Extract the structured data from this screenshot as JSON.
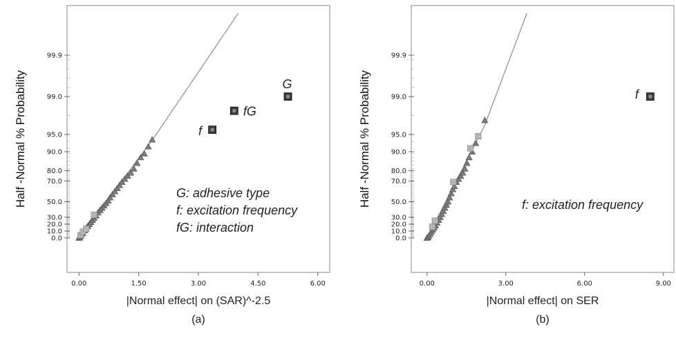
{
  "chart_data": [
    {
      "type": "scatter",
      "panel": "a",
      "caption": "(a)",
      "xlabel": "|Normal effect| on (SAR)^-2.5",
      "ylabel": "Half -Normal % Probability",
      "xlim": [
        -0.3,
        6.3
      ],
      "xticks": [
        "0.00",
        "1.50",
        "3.00",
        "4.50",
        "6.00"
      ],
      "xtick_values": [
        0,
        1.5,
        3,
        4.5,
        6
      ],
      "yticks": [
        "0.0",
        "10.0",
        "20.0",
        "30.0",
        "50.0",
        "70.0",
        "80.0",
        "90.0",
        "95.0",
        "99.0",
        "99.9"
      ],
      "ytick_values": [
        0,
        10,
        20,
        30,
        50,
        70,
        80,
        90,
        95,
        99,
        99.9
      ],
      "fit_line": {
        "points": [
          [
            0,
            0
          ],
          [
            1.85,
            93.5
          ],
          [
            4.0,
            99.96
          ]
        ]
      },
      "labeled_points": [
        {
          "label": "f",
          "x": 3.35,
          "y": 95.5
        },
        {
          "label": "fG",
          "x": 3.9,
          "y": 97.5
        },
        {
          "label": "G",
          "x": 5.25,
          "y": 99.0
        }
      ],
      "annotations": [
        "G: adhesive type",
        "f: excitation frequency",
        "fG: interaction"
      ],
      "error_effects": [
        {
          "x": 0.0,
          "y": 0
        },
        {
          "x": 0.02,
          "y": 1
        },
        {
          "x": 0.05,
          "y": 3
        },
        {
          "x": 0.08,
          "y": 6
        },
        {
          "x": 0.1,
          "y": 8
        },
        {
          "x": 0.14,
          "y": 11
        },
        {
          "x": 0.18,
          "y": 14
        },
        {
          "x": 0.22,
          "y": 17
        },
        {
          "x": 0.26,
          "y": 20
        },
        {
          "x": 0.3,
          "y": 23
        },
        {
          "x": 0.34,
          "y": 26
        },
        {
          "x": 0.38,
          "y": 29
        },
        {
          "x": 0.43,
          "y": 32
        },
        {
          "x": 0.48,
          "y": 36
        },
        {
          "x": 0.53,
          "y": 39
        },
        {
          "x": 0.58,
          "y": 42
        },
        {
          "x": 0.63,
          "y": 45
        },
        {
          "x": 0.68,
          "y": 48
        },
        {
          "x": 0.73,
          "y": 51
        },
        {
          "x": 0.78,
          "y": 54
        },
        {
          "x": 0.84,
          "y": 57
        },
        {
          "x": 0.9,
          "y": 60
        },
        {
          "x": 0.96,
          "y": 63
        },
        {
          "x": 1.02,
          "y": 66
        },
        {
          "x": 1.08,
          "y": 69
        },
        {
          "x": 1.15,
          "y": 72
        },
        {
          "x": 1.22,
          "y": 75
        },
        {
          "x": 1.3,
          "y": 78
        },
        {
          "x": 1.38,
          "y": 81
        },
        {
          "x": 1.46,
          "y": 84
        },
        {
          "x": 1.55,
          "y": 87
        },
        {
          "x": 1.64,
          "y": 89
        },
        {
          "x": 1.74,
          "y": 91.5
        },
        {
          "x": 1.84,
          "y": 93.5
        }
      ],
      "square_effects": [
        {
          "x": 0.04,
          "y": 4
        },
        {
          "x": 0.1,
          "y": 9
        },
        {
          "x": 0.18,
          "y": 13
        },
        {
          "x": 0.38,
          "y": 33
        }
      ]
    },
    {
      "type": "scatter",
      "panel": "b",
      "caption": "(b)",
      "xlabel": "|Normal effect| on SER",
      "ylabel": "Half -Normal % Probability",
      "xlim": [
        -0.6,
        9.4
      ],
      "xticks": [
        "0.00",
        "3.00",
        "6.00",
        "9.00"
      ],
      "xtick_values": [
        0,
        3,
        6,
        9
      ],
      "yticks": [
        "0.0",
        "10.0",
        "20.0",
        "30.0",
        "50.0",
        "70.0",
        "80.0",
        "90.0",
        "95.0",
        "99.0",
        "99.9"
      ],
      "ytick_values": [
        0,
        10,
        20,
        30,
        50,
        70,
        80,
        90,
        95,
        99,
        99.9
      ],
      "fit_line": {
        "points": [
          [
            0,
            0
          ],
          [
            2.2,
            96
          ],
          [
            3.8,
            99.96
          ]
        ]
      },
      "labeled_points": [
        {
          "label": "f",
          "x": 8.5,
          "y": 99.0
        }
      ],
      "annotations": [
        "f: excitation frequency"
      ],
      "error_effects": [
        {
          "x": 0.0,
          "y": 0
        },
        {
          "x": 0.03,
          "y": 1
        },
        {
          "x": 0.07,
          "y": 3
        },
        {
          "x": 0.12,
          "y": 6
        },
        {
          "x": 0.17,
          "y": 9
        },
        {
          "x": 0.22,
          "y": 12
        },
        {
          "x": 0.27,
          "y": 15
        },
        {
          "x": 0.32,
          "y": 18
        },
        {
          "x": 0.38,
          "y": 22
        },
        {
          "x": 0.44,
          "y": 26
        },
        {
          "x": 0.5,
          "y": 30
        },
        {
          "x": 0.56,
          "y": 34
        },
        {
          "x": 0.62,
          "y": 38
        },
        {
          "x": 0.68,
          "y": 42
        },
        {
          "x": 0.74,
          "y": 46
        },
        {
          "x": 0.8,
          "y": 50
        },
        {
          "x": 0.86,
          "y": 54
        },
        {
          "x": 0.92,
          "y": 58
        },
        {
          "x": 0.98,
          "y": 62
        },
        {
          "x": 1.04,
          "y": 65
        },
        {
          "x": 1.12,
          "y": 69
        },
        {
          "x": 1.2,
          "y": 72
        },
        {
          "x": 1.28,
          "y": 75
        },
        {
          "x": 1.36,
          "y": 78
        },
        {
          "x": 1.44,
          "y": 81
        },
        {
          "x": 1.52,
          "y": 84
        },
        {
          "x": 1.6,
          "y": 87
        },
        {
          "x": 1.72,
          "y": 90
        },
        {
          "x": 1.85,
          "y": 92.5
        },
        {
          "x": 2.2,
          "y": 96.5
        }
      ],
      "square_effects": [
        {
          "x": 0.2,
          "y": 16
        },
        {
          "x": 0.3,
          "y": 25
        },
        {
          "x": 1.0,
          "y": 69
        },
        {
          "x": 1.65,
          "y": 91
        },
        {
          "x": 1.95,
          "y": 94.5
        }
      ]
    }
  ]
}
